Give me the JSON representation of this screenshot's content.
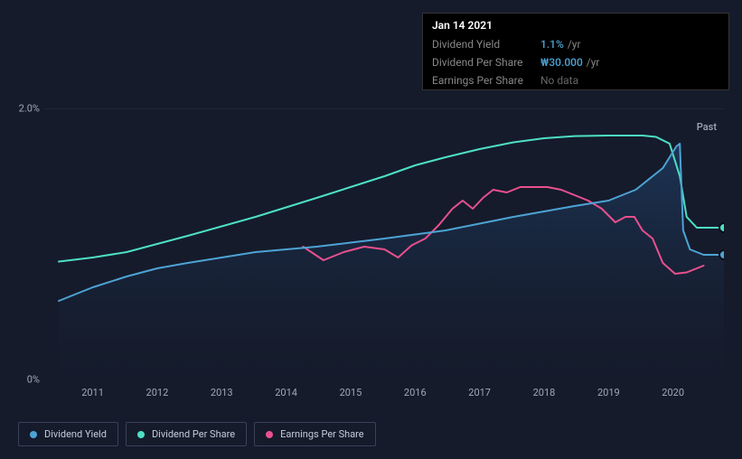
{
  "tooltip": {
    "date": "Jan 14 2021",
    "rows": [
      {
        "label": "Dividend Yield",
        "value": "1.1%",
        "unit": "/yr",
        "nodata": false
      },
      {
        "label": "Dividend Per Share",
        "value": "₩30.000",
        "unit": "/yr",
        "nodata": false
      },
      {
        "label": "Earnings Per Share",
        "value": "No data",
        "unit": "",
        "nodata": true
      }
    ]
  },
  "chart": {
    "y_max_label": "2.0%",
    "y_min_label": "0%",
    "past_label": "Past",
    "x_ticks": [
      "2011",
      "2012",
      "2013",
      "2014",
      "2015",
      "2016",
      "2017",
      "2018",
      "2019",
      "2020",
      "2021"
    ],
    "x_tick_positions": [
      0.07,
      0.165,
      0.26,
      0.355,
      0.45,
      0.545,
      0.64,
      0.735,
      0.83,
      0.925,
      1.01
    ],
    "background_color": "#151b2b",
    "grid_color": "#2a3042",
    "area_gradient_top": "#1e3a5f",
    "area_gradient_bottom": "#151b2b",
    "series": {
      "dividend_yield": {
        "color": "#4da3d4",
        "label": "Dividend Yield",
        "points": [
          [
            0.02,
            0.29
          ],
          [
            0.07,
            0.34
          ],
          [
            0.12,
            0.38
          ],
          [
            0.165,
            0.41
          ],
          [
            0.21,
            0.43
          ],
          [
            0.26,
            0.45
          ],
          [
            0.31,
            0.47
          ],
          [
            0.355,
            0.48
          ],
          [
            0.4,
            0.49
          ],
          [
            0.45,
            0.505
          ],
          [
            0.5,
            0.52
          ],
          [
            0.545,
            0.535
          ],
          [
            0.59,
            0.55
          ],
          [
            0.64,
            0.575
          ],
          [
            0.69,
            0.6
          ],
          [
            0.735,
            0.62
          ],
          [
            0.78,
            0.64
          ],
          [
            0.83,
            0.66
          ],
          [
            0.87,
            0.7
          ],
          [
            0.91,
            0.78
          ],
          [
            0.93,
            0.86
          ],
          [
            0.935,
            0.87
          ],
          [
            0.94,
            0.55
          ],
          [
            0.95,
            0.48
          ],
          [
            0.97,
            0.46
          ],
          [
            1.0,
            0.46
          ]
        ],
        "end_dot": [
          1.0,
          0.46
        ]
      },
      "dividend_per_share": {
        "color": "#4de0c4",
        "label": "Dividend Per Share",
        "points": [
          [
            0.02,
            0.435
          ],
          [
            0.07,
            0.45
          ],
          [
            0.12,
            0.47
          ],
          [
            0.165,
            0.5
          ],
          [
            0.21,
            0.53
          ],
          [
            0.26,
            0.565
          ],
          [
            0.31,
            0.6
          ],
          [
            0.355,
            0.635
          ],
          [
            0.4,
            0.67
          ],
          [
            0.45,
            0.71
          ],
          [
            0.5,
            0.75
          ],
          [
            0.545,
            0.79
          ],
          [
            0.59,
            0.82
          ],
          [
            0.64,
            0.85
          ],
          [
            0.69,
            0.875
          ],
          [
            0.735,
            0.89
          ],
          [
            0.78,
            0.898
          ],
          [
            0.83,
            0.9
          ],
          [
            0.88,
            0.9
          ],
          [
            0.9,
            0.895
          ],
          [
            0.92,
            0.87
          ],
          [
            0.935,
            0.75
          ],
          [
            0.945,
            0.6
          ],
          [
            0.96,
            0.56
          ],
          [
            1.0,
            0.56
          ]
        ],
        "end_dot": [
          1.0,
          0.56
        ]
      },
      "earnings_per_share": {
        "color": "#e8508e",
        "label": "Earnings Per Share",
        "points": [
          [
            0.38,
            0.49
          ],
          [
            0.41,
            0.44
          ],
          [
            0.44,
            0.47
          ],
          [
            0.47,
            0.49
          ],
          [
            0.5,
            0.48
          ],
          [
            0.52,
            0.45
          ],
          [
            0.54,
            0.495
          ],
          [
            0.56,
            0.52
          ],
          [
            0.58,
            0.57
          ],
          [
            0.6,
            0.63
          ],
          [
            0.615,
            0.66
          ],
          [
            0.63,
            0.63
          ],
          [
            0.645,
            0.67
          ],
          [
            0.66,
            0.7
          ],
          [
            0.68,
            0.69
          ],
          [
            0.7,
            0.71
          ],
          [
            0.72,
            0.71
          ],
          [
            0.74,
            0.71
          ],
          [
            0.76,
            0.7
          ],
          [
            0.78,
            0.68
          ],
          [
            0.8,
            0.66
          ],
          [
            0.82,
            0.63
          ],
          [
            0.84,
            0.58
          ],
          [
            0.855,
            0.6
          ],
          [
            0.868,
            0.6
          ],
          [
            0.88,
            0.55
          ],
          [
            0.895,
            0.52
          ],
          [
            0.91,
            0.43
          ],
          [
            0.928,
            0.39
          ],
          [
            0.945,
            0.395
          ],
          [
            0.96,
            0.41
          ],
          [
            0.97,
            0.42
          ]
        ]
      }
    }
  },
  "legend": [
    {
      "label": "Dividend Yield",
      "color": "#4da3d4"
    },
    {
      "label": "Dividend Per Share",
      "color": "#4de0c4"
    },
    {
      "label": "Earnings Per Share",
      "color": "#e8508e"
    }
  ]
}
